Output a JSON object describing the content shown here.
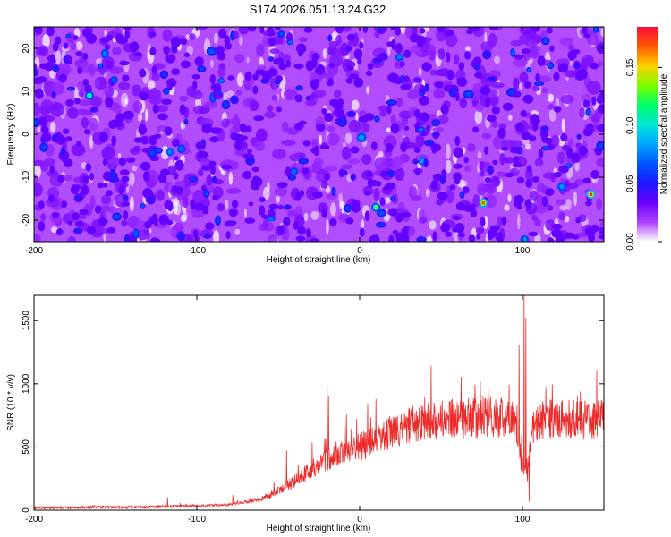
{
  "figure": {
    "title": "S174.2026.051.13.24.G32"
  },
  "chart_data": [
    {
      "type": "heatmap",
      "title": "S174.2026.051.13.24.G32",
      "xlabel": "Height of straight line (km)",
      "ylabel": "Frequency (Hz)",
      "xlim": [
        -200,
        150
      ],
      "ylim": [
        -25,
        25
      ],
      "xticks": [
        -200,
        -100,
        0,
        100
      ],
      "yticks": [
        -20,
        -10,
        0,
        10,
        20
      ],
      "x_tick_labels": [
        "-200",
        "-100",
        "0",
        "100"
      ],
      "y_tick_labels": [
        "-20",
        "-10",
        "0",
        "10",
        "20"
      ],
      "colorbar": {
        "label": "Normalized spectral amplitude",
        "range": [
          0,
          0.185
        ],
        "ticks": [
          0,
          0.05,
          0.1,
          0.15
        ],
        "tick_labels": [
          "0.00",
          "0.05",
          "0.10",
          "0.15"
        ],
        "colormap": [
          "#ffffff",
          "#b040ff",
          "#6a00ff",
          "#1a1aff",
          "#0055ff",
          "#00a6ff",
          "#00e6d2",
          "#00ff66",
          "#7dff00",
          "#ffd000",
          "#ff5a00",
          "#ff0a3c"
        ]
      },
      "description_values": {
        "background_level": 0.015,
        "typical_peak_level": 0.06,
        "max_peaks": [
          {
            "x": 142,
            "y": -14,
            "value": 0.18
          },
          {
            "x": 76,
            "y": -16,
            "value": 0.17
          },
          {
            "x": 10,
            "y": -17,
            "value": 0.13
          },
          {
            "x": -166,
            "y": 9,
            "value": 0.12
          }
        ]
      }
    },
    {
      "type": "line",
      "xlabel": "Height of straight line (km)",
      "ylabel": "SNR (10 * v/v)",
      "xlim": [
        -200,
        150
      ],
      "ylim": [
        0,
        1700
      ],
      "xticks": [
        -200,
        -100,
        0,
        100
      ],
      "yticks": [
        0,
        500,
        1000,
        1500
      ],
      "x_tick_labels": [
        "-200",
        "-100",
        "0",
        "100"
      ],
      "y_tick_labels": [
        "0",
        "500",
        "1000",
        "1500"
      ],
      "series": [
        {
          "name": "SNR",
          "color": "#ee2b2b",
          "trend_x": [
            -200,
            -130,
            -100,
            -80,
            -60,
            -50,
            -40,
            -30,
            -20,
            -10,
            0,
            10,
            20,
            30,
            40,
            50,
            60,
            70,
            80,
            90,
            95,
            100,
            103,
            106,
            110,
            120,
            130,
            150
          ],
          "trend_y": [
            20,
            25,
            35,
            45,
            90,
            150,
            230,
            320,
            400,
            450,
            500,
            560,
            620,
            670,
            700,
            720,
            730,
            730,
            735,
            730,
            720,
            340,
            280,
            650,
            720,
            720,
            715,
            715
          ],
          "spikes": [
            {
              "x": -118,
              "y": 100
            },
            {
              "x": -78,
              "y": 120
            },
            {
              "x": -45,
              "y": 470
            },
            {
              "x": -20,
              "y": 980
            },
            {
              "x": -19,
              "y": 900
            },
            {
              "x": 5,
              "y": 840
            },
            {
              "x": 44,
              "y": 1140
            },
            {
              "x": 74,
              "y": 1020
            },
            {
              "x": 98,
              "y": 1310
            },
            {
              "x": 101,
              "y": 1700
            },
            {
              "x": 102,
              "y": 1520
            },
            {
              "x": 104,
              "y": 70
            }
          ]
        }
      ]
    }
  ]
}
